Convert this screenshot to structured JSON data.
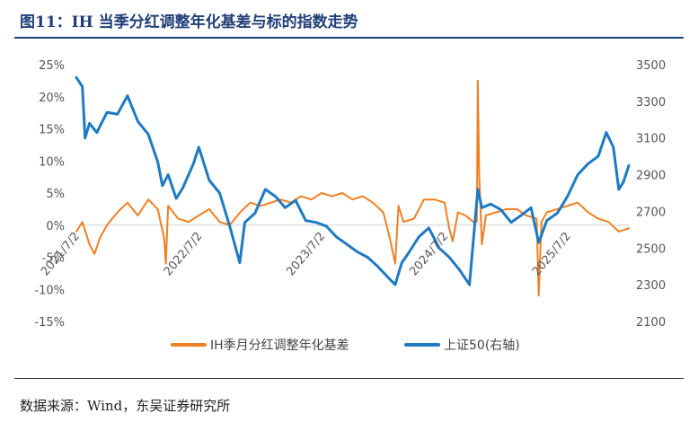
{
  "figure": {
    "title": "图11：IH 当季分红调整年化基差与标的指数走势",
    "source": "数据来源：Wind，东吴证券研究所"
  },
  "colors": {
    "series_basis": "#F07F22",
    "series_index": "#1E7AC1",
    "zero_line": "#d0d0d0"
  },
  "chart_data": {
    "type": "line",
    "x_ticks": [
      "2021/7/2",
      "2022/7/2",
      "2023/7/2",
      "2024/7/2",
      "2025/7/2"
    ],
    "x_range": [
      "2021-07-02",
      "2025-12-31"
    ],
    "y_left": {
      "ylim": [
        -0.15,
        0.25
      ],
      "ticks": [
        "-15%",
        "-10%",
        "-5%",
        "0%",
        "5%",
        "10%",
        "15%",
        "20%",
        "25%"
      ]
    },
    "y_right": {
      "ylim": [
        2100,
        3500
      ],
      "ticks": [
        "2100",
        "2300",
        "2500",
        "2700",
        "2900",
        "3100",
        "3300",
        "3500"
      ]
    },
    "legend_position": "bottom",
    "grid": false,
    "series": [
      {
        "name": "IH季月分红调整年化基差",
        "axis": "left",
        "points": [
          [
            "2021-07-02",
            -0.01
          ],
          [
            "2021-07-20",
            0.005
          ],
          [
            "2021-08-10",
            -0.03
          ],
          [
            "2021-08-25",
            -0.045
          ],
          [
            "2021-09-10",
            -0.02
          ],
          [
            "2021-10-01",
            0.0
          ],
          [
            "2021-11-01",
            0.02
          ],
          [
            "2021-12-01",
            0.035
          ],
          [
            "2022-01-01",
            0.015
          ],
          [
            "2022-02-01",
            0.04
          ],
          [
            "2022-03-01",
            0.025
          ],
          [
            "2022-03-20",
            -0.02
          ],
          [
            "2022-03-25",
            -0.06
          ],
          [
            "2022-04-01",
            0.03
          ],
          [
            "2022-05-01",
            0.01
          ],
          [
            "2022-06-01",
            0.005
          ],
          [
            "2022-07-01",
            0.015
          ],
          [
            "2022-08-01",
            0.025
          ],
          [
            "2022-09-01",
            0.005
          ],
          [
            "2022-10-01",
            0.0
          ],
          [
            "2022-11-01",
            0.02
          ],
          [
            "2022-12-01",
            0.035
          ],
          [
            "2023-01-01",
            0.03
          ],
          [
            "2023-02-01",
            0.035
          ],
          [
            "2023-03-01",
            0.04
          ],
          [
            "2023-04-01",
            0.035
          ],
          [
            "2023-05-01",
            0.045
          ],
          [
            "2023-06-01",
            0.04
          ],
          [
            "2023-07-01",
            0.05
          ],
          [
            "2023-08-01",
            0.045
          ],
          [
            "2023-09-01",
            0.05
          ],
          [
            "2023-10-01",
            0.04
          ],
          [
            "2023-11-01",
            0.045
          ],
          [
            "2023-12-01",
            0.035
          ],
          [
            "2024-01-01",
            0.02
          ],
          [
            "2024-01-20",
            -0.02
          ],
          [
            "2024-02-05",
            -0.06
          ],
          [
            "2024-02-15",
            0.03
          ],
          [
            "2024-03-01",
            0.005
          ],
          [
            "2024-04-01",
            0.01
          ],
          [
            "2024-05-01",
            0.04
          ],
          [
            "2024-06-01",
            0.04
          ],
          [
            "2024-07-01",
            0.035
          ],
          [
            "2024-07-15",
            -0.005
          ],
          [
            "2024-07-25",
            -0.025
          ],
          [
            "2024-08-10",
            0.02
          ],
          [
            "2024-09-01",
            0.015
          ],
          [
            "2024-09-25",
            0.005
          ],
          [
            "2024-10-05",
            0.005
          ],
          [
            "2024-10-08",
            0.225
          ],
          [
            "2024-10-12",
            0.08
          ],
          [
            "2024-10-20",
            -0.03
          ],
          [
            "2024-11-01",
            0.015
          ],
          [
            "2024-12-01",
            0.02
          ],
          [
            "2025-01-01",
            0.025
          ],
          [
            "2025-02-01",
            0.025
          ],
          [
            "2025-03-01",
            0.015
          ],
          [
            "2025-04-01",
            0.01
          ],
          [
            "2025-04-07",
            -0.11
          ],
          [
            "2025-04-15",
            0.005
          ],
          [
            "2025-05-01",
            0.02
          ],
          [
            "2025-06-01",
            0.025
          ],
          [
            "2025-07-01",
            0.03
          ],
          [
            "2025-08-01",
            0.035
          ],
          [
            "2025-09-01",
            0.02
          ],
          [
            "2025-10-01",
            0.01
          ],
          [
            "2025-11-01",
            0.005
          ],
          [
            "2025-12-01",
            -0.01
          ],
          [
            "2025-12-31",
            -0.005
          ]
        ]
      },
      {
        "name": "上证50(右轴)",
        "axis": "right",
        "points": [
          [
            "2021-07-02",
            3430
          ],
          [
            "2021-07-20",
            3380
          ],
          [
            "2021-07-28",
            3100
          ],
          [
            "2021-08-10",
            3180
          ],
          [
            "2021-09-01",
            3130
          ],
          [
            "2021-10-01",
            3240
          ],
          [
            "2021-11-01",
            3230
          ],
          [
            "2021-12-01",
            3330
          ],
          [
            "2022-01-01",
            3190
          ],
          [
            "2022-02-01",
            3120
          ],
          [
            "2022-03-01",
            2970
          ],
          [
            "2022-03-15",
            2840
          ],
          [
            "2022-04-01",
            2900
          ],
          [
            "2022-04-25",
            2770
          ],
          [
            "2022-05-15",
            2830
          ],
          [
            "2022-06-15",
            2960
          ],
          [
            "2022-07-01",
            3050
          ],
          [
            "2022-08-01",
            2870
          ],
          [
            "2022-09-01",
            2800
          ],
          [
            "2022-10-01",
            2620
          ],
          [
            "2022-10-31",
            2420
          ],
          [
            "2022-11-15",
            2640
          ],
          [
            "2022-12-15",
            2690
          ],
          [
            "2023-01-15",
            2820
          ],
          [
            "2023-02-15",
            2780
          ],
          [
            "2023-03-15",
            2720
          ],
          [
            "2023-04-15",
            2760
          ],
          [
            "2023-05-15",
            2650
          ],
          [
            "2023-06-15",
            2640
          ],
          [
            "2023-07-15",
            2620
          ],
          [
            "2023-08-15",
            2560
          ],
          [
            "2023-09-15",
            2520
          ],
          [
            "2023-10-15",
            2480
          ],
          [
            "2023-11-15",
            2450
          ],
          [
            "2023-12-15",
            2400
          ],
          [
            "2024-01-15",
            2340
          ],
          [
            "2024-02-05",
            2300
          ],
          [
            "2024-02-25",
            2420
          ],
          [
            "2024-03-15",
            2470
          ],
          [
            "2024-04-15",
            2560
          ],
          [
            "2024-05-15",
            2610
          ],
          [
            "2024-06-15",
            2500
          ],
          [
            "2024-07-15",
            2450
          ],
          [
            "2024-08-15",
            2380
          ],
          [
            "2024-09-13",
            2300
          ],
          [
            "2024-10-08",
            2820
          ],
          [
            "2024-10-20",
            2720
          ],
          [
            "2024-11-15",
            2740
          ],
          [
            "2024-12-15",
            2710
          ],
          [
            "2025-01-15",
            2640
          ],
          [
            "2025-02-15",
            2680
          ],
          [
            "2025-03-15",
            2720
          ],
          [
            "2025-04-07",
            2530
          ],
          [
            "2025-05-01",
            2650
          ],
          [
            "2025-06-01",
            2690
          ],
          [
            "2025-07-01",
            2780
          ],
          [
            "2025-08-01",
            2900
          ],
          [
            "2025-09-01",
            2960
          ],
          [
            "2025-10-01",
            3000
          ],
          [
            "2025-10-25",
            3130
          ],
          [
            "2025-11-15",
            3050
          ],
          [
            "2025-12-01",
            2820
          ],
          [
            "2025-12-15",
            2860
          ],
          [
            "2025-12-31",
            2950
          ]
        ]
      }
    ]
  }
}
